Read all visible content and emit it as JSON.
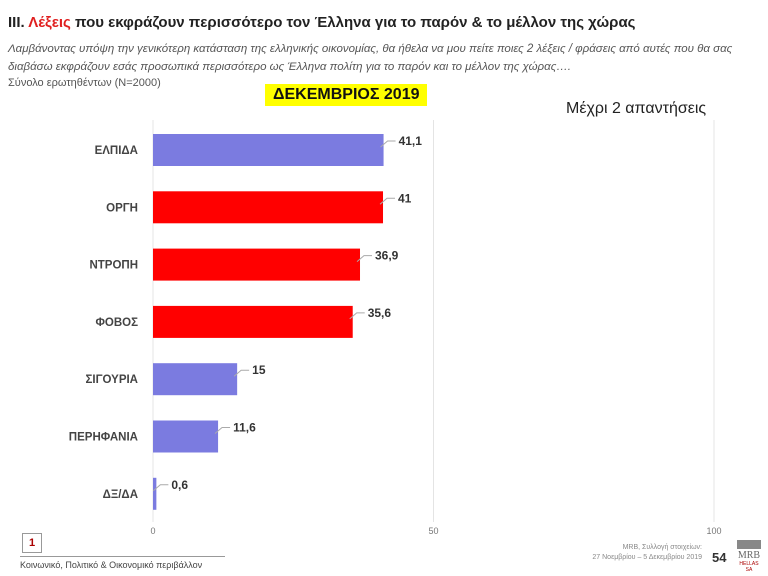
{
  "header": {
    "title_prefix": "ΙΙΙ. ",
    "title_highlight": "Λέξεις",
    "title_rest": " που εκφράζουν περισσότερο τον Έλληνα για το παρόν & το μέλλον της χώρας",
    "subtitle": "Λαμβάνοντας υπόψη την γενικότερη κατάσταση της ελληνικής οικονομίας, θα ήθελα να μου πείτε ποιες 2  λέξεις / φράσεις από αυτές που θα σας διαβάσω εκφράζουν εσάς προσωπικά περισσότερο ως Έλληνα πολίτη για το παρόν και το μέλλον της χώρας….",
    "base": "Σύνολο ερωτηθέντων (N=2000)",
    "period": "ΔΕΚΕΜΒΡΙΟΣ 2019",
    "note": "Μέχρι 2 απαντήσεις"
  },
  "chart_data": {
    "type": "bar",
    "orientation": "horizontal",
    "categories": [
      "ΕΛΠΙΔΑ",
      "ΟΡΓΗ",
      "ΝΤΡΟΠΗ",
      "ΦΟΒΟΣ",
      "ΣΙΓΟΥΡΙΑ",
      "ΠΕΡΗΦΑΝΙΑ",
      "ΔΞ/ΔΑ"
    ],
    "values": [
      41.1,
      41,
      36.9,
      35.6,
      15,
      11.6,
      0.6
    ],
    "labels": [
      "41,1",
      "41",
      "36,9",
      "35,6",
      "15",
      "11,6",
      "0,6"
    ],
    "colors": [
      "#7b7be0",
      "#ff0000",
      "#ff0000",
      "#ff0000",
      "#7b7be0",
      "#7b7be0",
      "#7b7be0"
    ],
    "xlim": [
      0,
      100
    ],
    "xticks": [
      "0",
      "50",
      "100"
    ],
    "grid": true
  },
  "footer": {
    "page_box": "1",
    "section": "Κοινωνικό, Πολιτικό & Οικονομικό περιβάλλον",
    "source1": "MRB, Συλλογή στοιχείων:",
    "source2": "27 Νοεμβρίου – 5 Δεκεμβρίου 2019",
    "page_number": "54",
    "logo": "MRB",
    "logo_sub": "HELLAS SA"
  }
}
